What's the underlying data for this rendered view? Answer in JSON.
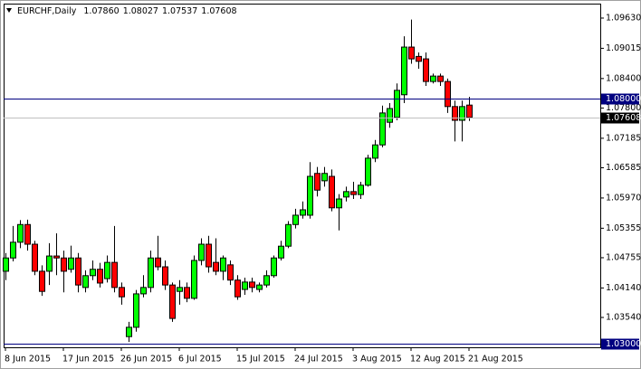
{
  "chart_data": {
    "type": "candlestick",
    "title": "EURCHF,Daily",
    "ohlc_labels": [
      "1.07860",
      "1.08027",
      "1.07537",
      "1.07608"
    ],
    "categories": [
      "8 Jun 2015",
      null,
      null,
      null,
      null,
      null,
      null,
      null,
      "17 Jun 2015",
      null,
      null,
      null,
      null,
      null,
      null,
      null,
      "26 Jun 2015",
      null,
      null,
      null,
      null,
      null,
      null,
      null,
      "6 Jul 2015",
      null,
      null,
      null,
      null,
      null,
      null,
      null,
      "15 Jul 2015",
      null,
      null,
      null,
      null,
      null,
      null,
      null,
      "24 Jul 2015",
      null,
      null,
      null,
      null,
      null,
      null,
      null,
      "3 Aug 2015",
      null,
      null,
      null,
      null,
      null,
      null,
      null,
      "12 Aug 2015",
      null,
      null,
      null,
      null,
      null,
      null,
      null,
      "21 Aug 2015"
    ],
    "open": [
      1.0448,
      1.0475,
      1.0507,
      1.0543,
      1.0503,
      1.0448,
      1.0448,
      1.0479,
      1.0475,
      1.0452,
      1.0475,
      1.0415,
      1.0439,
      1.0452,
      1.0433,
      1.0466,
      1.0415,
      1.0315,
      1.0334,
      1.0402,
      1.0415,
      1.0475,
      1.0457,
      1.042,
      1.0407,
      1.0415,
      1.0393,
      1.047,
      1.0503,
      1.0466,
      1.0448,
      1.0461,
      1.043,
      1.0411,
      1.0426,
      1.0411,
      1.042,
      1.0439,
      1.0475,
      1.0499,
      1.0543,
      1.0562,
      1.0562,
      1.0647,
      1.0632,
      1.0641,
      1.0577,
      1.0599,
      1.061,
      1.0604,
      1.0623,
      1.0678,
      1.0705,
      1.0751,
      1.0761,
      1.0807,
      1.0904,
      1.0885,
      1.088,
      1.0834,
      1.0845,
      1.0834,
      1.0783,
      1.0755,
      1.0786
    ],
    "high": [
      1.0485,
      1.054,
      1.0552,
      1.0553,
      1.051,
      1.046,
      1.0505,
      1.0525,
      1.049,
      1.05,
      1.0485,
      1.045,
      1.047,
      1.0465,
      1.048,
      1.054,
      1.0425,
      1.0345,
      1.041,
      1.044,
      1.049,
      1.052,
      1.047,
      1.0425,
      1.043,
      1.0425,
      1.048,
      1.0515,
      1.052,
      1.0515,
      1.048,
      1.047,
      1.044,
      1.0435,
      1.0435,
      1.0425,
      1.045,
      1.048,
      1.051,
      1.055,
      1.0575,
      1.059,
      1.067,
      1.066,
      1.066,
      1.0655,
      1.0605,
      1.062,
      1.063,
      1.063,
      1.0685,
      1.0715,
      1.0785,
      1.079,
      1.083,
      1.0926,
      1.096,
      1.0893,
      1.0893,
      1.085,
      1.085,
      1.084,
      1.0795,
      1.0795,
      1.08027
    ],
    "low": [
      1.043,
      1.0468,
      1.0495,
      1.049,
      1.044,
      1.0398,
      1.042,
      1.044,
      1.0405,
      1.0445,
      1.0405,
      1.0405,
      1.043,
      1.0415,
      1.0425,
      1.0405,
      1.038,
      1.0304,
      1.0325,
      1.0395,
      1.0405,
      1.045,
      1.041,
      1.0345,
      1.038,
      1.0385,
      1.039,
      1.046,
      1.0445,
      1.044,
      1.043,
      1.042,
      1.039,
      1.04,
      1.0405,
      1.0405,
      1.0415,
      1.0435,
      1.047,
      1.0495,
      1.0535,
      1.0555,
      1.0555,
      1.06,
      1.062,
      1.057,
      1.0531,
      1.059,
      1.0595,
      1.0595,
      1.062,
      1.067,
      1.07,
      1.074,
      1.0755,
      1.079,
      1.087,
      1.086,
      1.0825,
      1.083,
      1.0825,
      1.077,
      1.0712,
      1.0712,
      1.07537
    ],
    "close": [
      1.0475,
      1.0507,
      1.0543,
      1.0503,
      1.0448,
      1.0407,
      1.0479,
      1.0475,
      1.0448,
      1.0475,
      1.042,
      1.0439,
      1.0452,
      1.0424,
      1.0466,
      1.0415,
      1.0396,
      1.0334,
      1.0402,
      1.0415,
      1.0475,
      1.0457,
      1.042,
      1.0352,
      1.0415,
      1.0393,
      1.047,
      1.0503,
      1.0457,
      1.0448,
      1.0475,
      1.043,
      1.0396,
      1.0426,
      1.0415,
      1.042,
      1.0439,
      1.0475,
      1.0499,
      1.0543,
      1.0562,
      1.0573,
      1.0641,
      1.0613,
      1.0647,
      1.0577,
      1.0595,
      1.061,
      1.0604,
      1.0623,
      1.0678,
      1.0705,
      1.077,
      1.0779,
      1.0816,
      1.0904,
      1.088,
      1.0875,
      1.0834,
      1.0845,
      1.0834,
      1.0783,
      1.0755,
      1.0783,
      1.07608
    ],
    "up_color": "#00ff00",
    "down_color": "#ff0000",
    "ylim": [
      1.02933,
      1.09924
    ],
    "yticks": [
      {
        "value": 1.0963,
        "label": "1.09630"
      },
      {
        "value": 1.09015,
        "label": "1.09015"
      },
      {
        "value": 1.084,
        "label": "1.08400"
      },
      {
        "value": 1.078,
        "label": "1.07800"
      },
      {
        "value": 1.07185,
        "label": "1.07185"
      },
      {
        "value": 1.06585,
        "label": "1.06585"
      },
      {
        "value": 1.0597,
        "label": "1.05970"
      },
      {
        "value": 1.05355,
        "label": "1.05355"
      },
      {
        "value": 1.04755,
        "label": "1.04755"
      },
      {
        "value": 1.0414,
        "label": "1.04140"
      },
      {
        "value": 1.0354,
        "label": "1.03540"
      }
    ],
    "levels": [
      {
        "value": 1.08,
        "label": "1.08000",
        "line_color": "#000080",
        "box_color": "#000080"
      },
      {
        "value": 1.07608,
        "label": "1.07608",
        "line_color": "#c0c0c0",
        "box_color": "#000000"
      },
      {
        "value": 1.03,
        "label": "1.03000",
        "line_color": "#000080",
        "box_color": "#000080"
      }
    ]
  }
}
